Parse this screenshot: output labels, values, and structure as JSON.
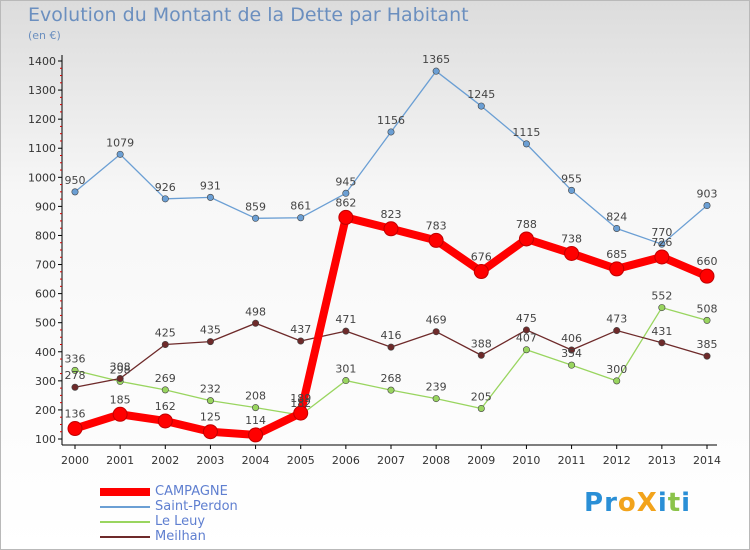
{
  "header": {
    "title": "Evolution du Montant de la Dette par Habitant",
    "subtitle": "(en €)"
  },
  "logo": {
    "text": "ProXiti",
    "colors": [
      "#2a8fd6",
      "#2a8fd6",
      "#f2a31b",
      "#f2a31b",
      "#2a8fd6",
      "#8bc34a",
      "#2a8fd6"
    ]
  },
  "chart_data": {
    "type": "line",
    "title": "Evolution du Montant de la Dette par Habitant",
    "subtitle": "(en €)",
    "xlabel": "",
    "ylabel": "",
    "x": [
      "2000",
      "2001",
      "2002",
      "2003",
      "2004",
      "2005",
      "2006",
      "2007",
      "2008",
      "2009",
      "2010",
      "2011",
      "2012",
      "2013",
      "2014"
    ],
    "ylim": [
      100,
      1400
    ],
    "yticks": [
      "100",
      "200",
      "300",
      "400",
      "500",
      "600",
      "700",
      "800",
      "900",
      "1000",
      "1100",
      "1200",
      "1300",
      "1400"
    ],
    "grid": false,
    "legend": "bottom-left",
    "series": [
      {
        "name": "CAMPAGNE",
        "color": "#ff0000",
        "values": [
          136,
          185,
          162,
          125,
          114,
          189,
          862,
          823,
          783,
          676,
          788,
          738,
          685,
          726,
          660
        ]
      },
      {
        "name": "Saint-Perdon",
        "color": "#6b9fd4",
        "values": [
          950,
          1079,
          926,
          931,
          859,
          861,
          945,
          1156,
          1365,
          1245,
          1115,
          955,
          824,
          770,
          903
        ]
      },
      {
        "name": "Le Leuy",
        "color": "#99d55f",
        "values": [
          336,
          298,
          269,
          232,
          208,
          182,
          301,
          268,
          239,
          205,
          407,
          354,
          300,
          552,
          508
        ]
      },
      {
        "name": "Meilhan",
        "color": "#6e2a2a",
        "values": [
          278,
          308,
          425,
          435,
          498,
          437,
          471,
          416,
          469,
          388,
          475,
          406,
          473,
          431,
          385
        ]
      }
    ]
  }
}
